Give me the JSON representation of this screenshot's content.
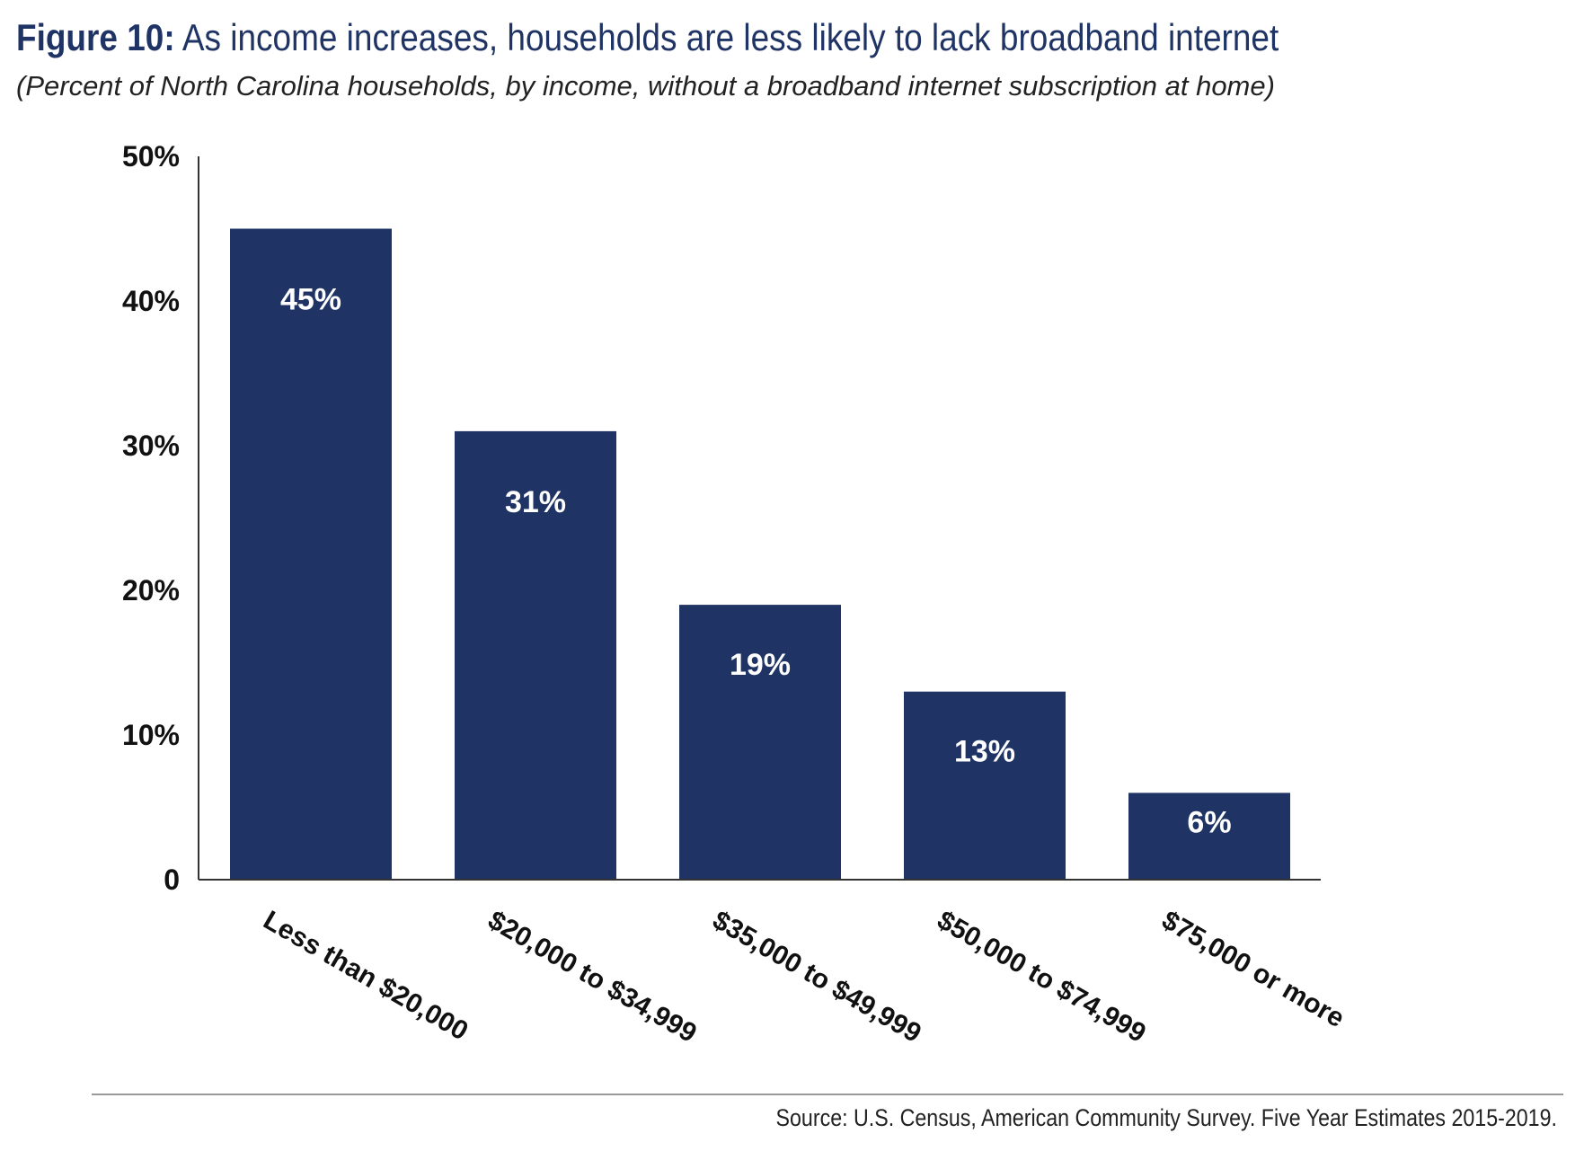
{
  "header": {
    "figure_label": "Figure 10:",
    "title": "As income increases, households are less likely to lack broadband internet",
    "subtitle": "(Percent of North Carolina households, by income, without a broadband internet subscription at home)"
  },
  "chart_data": {
    "type": "bar",
    "categories": [
      "Less than $20,000",
      "$20,000 to $34,999",
      "$35,000 to $49,999",
      "$50,000 to $74,999",
      "$75,000 or more"
    ],
    "values": [
      45,
      31,
      19,
      13,
      6
    ],
    "value_labels": [
      "45%",
      "31%",
      "19%",
      "13%",
      "6%"
    ],
    "ylim": [
      0,
      50
    ],
    "yticks": [
      0,
      10,
      20,
      30,
      40,
      50
    ],
    "ytick_labels": [
      "0",
      "10%",
      "20%",
      "30%",
      "40%",
      "50%"
    ],
    "xlabel": "",
    "ylabel": "",
    "grid": false,
    "legend": "none",
    "bar_color": "#1f3464",
    "label_color": "#ffffff"
  },
  "footer": {
    "source": "Source: U.S. Census, American Community Survey. Five Year Estimates 2015-2019."
  }
}
